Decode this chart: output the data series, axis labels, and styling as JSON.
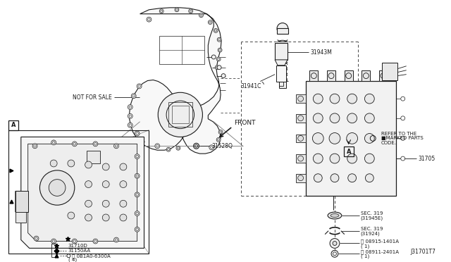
{
  "bg_color": "#ffffff",
  "fig_width": 6.4,
  "fig_height": 3.72,
  "diagram_id": "J31701T7",
  "text_color": "#1a1a1a",
  "line_color": "#1a1a1a",
  "labels": {
    "not_for_sale": "NOT FOR SALE",
    "front": "FRONT",
    "part_31943M": "31943M",
    "part_31941C": "31941C",
    "part_31705": "31705",
    "part_31528Q": "31528Q",
    "part_31710D": "31710D",
    "part_31150AA": "31150AA",
    "part_0B1A0": "Ⓑ 0B1A0-6300A",
    "part_0B1A0_sub": "( 4)",
    "sec319_1": "SEC. 319",
    "sec319_1s": "(31945E)",
    "sec319_2": "SEC. 319",
    "sec319_2s": "(31924)",
    "part_08915": "Ⓟ 08915-1401A",
    "part_08915_sub": "( 1)",
    "part_08911": "Ⓝ 08911-2401A",
    "part_08911_sub": "( 1)",
    "refer1": "REFER TO THE",
    "refer2": "■MARKED PARTS",
    "refer3": "CODE.",
    "box_A": "A"
  }
}
